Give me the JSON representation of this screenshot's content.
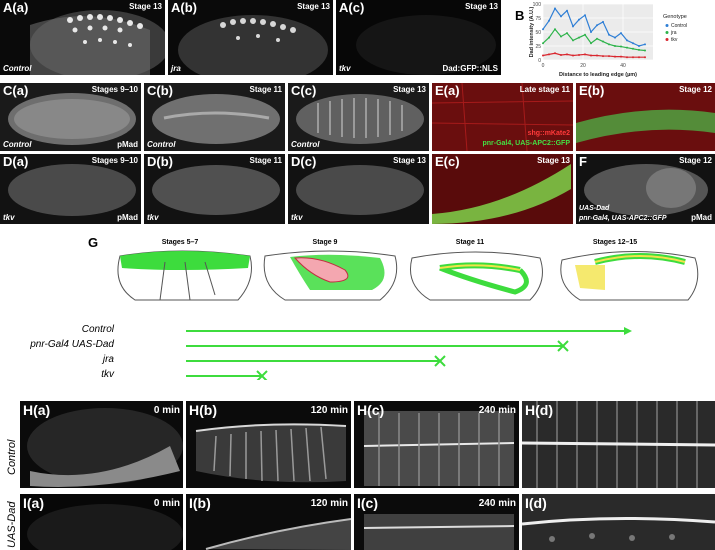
{
  "row_a": [
    {
      "label": "A(a)",
      "stage": "Stage 13",
      "bottom_left": "Control",
      "bottom_right": ""
    },
    {
      "label": "A(b)",
      "stage": "Stage 13",
      "bottom_left": "jra",
      "bottom_right": ""
    },
    {
      "label": "A(c)",
      "stage": "Stage 13",
      "bottom_left": "tkv",
      "bottom_right": "Dad:GFP::NLS"
    }
  ],
  "chart_panel": {
    "label": "B",
    "chart_data": {
      "type": "line",
      "xlabel": "Distance to leading edge (µm)",
      "ylabel": "Dad intensity (A.U.)",
      "xlim": [
        0,
        55
      ],
      "ylim": [
        0,
        100
      ],
      "xticks": [
        0,
        20,
        40
      ],
      "yticks": [
        0,
        25,
        50,
        75,
        100
      ],
      "legend_title": "Genotype",
      "legend_position": "right",
      "series": [
        {
          "name": "Control",
          "color": "#2f7fd6",
          "x": [
            0,
            3,
            6,
            9,
            12,
            15,
            18,
            21,
            24,
            27,
            30,
            33,
            36,
            39,
            42,
            45,
            48,
            51
          ],
          "y": [
            55,
            70,
            92,
            78,
            88,
            60,
            72,
            80,
            50,
            62,
            68,
            45,
            40,
            48,
            35,
            30,
            25,
            28
          ]
        },
        {
          "name": "jra",
          "color": "#2db34a",
          "x": [
            0,
            3,
            6,
            9,
            12,
            15,
            18,
            21,
            24,
            27,
            30,
            33,
            36,
            39,
            42,
            45,
            48,
            51
          ],
          "y": [
            30,
            40,
            55,
            42,
            48,
            35,
            40,
            45,
            30,
            38,
            33,
            28,
            25,
            24,
            22,
            20,
            18,
            17
          ]
        },
        {
          "name": "tkv",
          "color": "#d9262e",
          "x": [
            0,
            3,
            6,
            9,
            12,
            15,
            18,
            21,
            24,
            27,
            30,
            33,
            36,
            39,
            42,
            45,
            48,
            51
          ],
          "y": [
            8,
            10,
            12,
            9,
            10,
            8,
            9,
            10,
            8,
            8,
            7,
            7,
            6,
            6,
            5,
            5,
            5,
            5
          ]
        }
      ]
    }
  },
  "row_c": [
    {
      "label": "C(a)",
      "stage": "Stages 9–10",
      "bottom_left": "Control",
      "bottom_right": "pMad"
    },
    {
      "label": "C(b)",
      "stage": "Stage 11",
      "bottom_left": "Control",
      "bottom_right": ""
    },
    {
      "label": "C(c)",
      "stage": "Stage 13",
      "bottom_left": "Control",
      "bottom_right": ""
    },
    {
      "label": "E(a)",
      "stage": "Late stage 11",
      "bottom_left": "",
      "bottom_right": "",
      "legend1": "shg::mKate2",
      "legend2": "pnr-Gal4, UAS-APC2::GFP"
    },
    {
      "label": "E(b)",
      "stage": "Stage 12",
      "bottom_left": "",
      "bottom_right": ""
    }
  ],
  "row_d": [
    {
      "label": "D(a)",
      "stage": "Stages 9–10",
      "bottom_left": "tkv",
      "bottom_right": "pMad"
    },
    {
      "label": "D(b)",
      "stage": "Stage 11",
      "bottom_left": "tkv",
      "bottom_right": ""
    },
    {
      "label": "D(c)",
      "stage": "Stage 13",
      "bottom_left": "tkv",
      "bottom_right": ""
    },
    {
      "label": "E(c)",
      "stage": "Stage 13",
      "bottom_left": "",
      "bottom_right": ""
    },
    {
      "label": "F",
      "stage": "Stage 12",
      "bottom_left": "UAS-Dad",
      "bottom_left2": "pnr-Gal4, UAS-APC2::GFP",
      "bottom_right": "pMad"
    }
  ],
  "g_panel": {
    "label": "G",
    "stages": [
      "Stages 5–7",
      "Stage 9",
      "Stage 11",
      "Stages 12–15"
    ],
    "genotypes": [
      "Control",
      "pnr-Gal4 UAS-Dad",
      "jra",
      "tkv"
    ],
    "colors": {
      "green": "#3ddc3d",
      "pink": "#f4a7b0",
      "yellow": "#f2e34a"
    }
  },
  "row_h": {
    "side_label": "Control",
    "panels": [
      {
        "label": "H(a)",
        "time": "0 min"
      },
      {
        "label": "H(b)",
        "time": "120 min"
      },
      {
        "label": "H(c)",
        "time": "240 min"
      },
      {
        "label": "H(d)",
        "time": ""
      }
    ]
  },
  "row_i": {
    "side_label": "UAS-Dad",
    "panels": [
      {
        "label": "I(a)",
        "time": "0 min"
      },
      {
        "label": "I(b)",
        "time": "120 min"
      },
      {
        "label": "I(c)",
        "time": "240 min"
      },
      {
        "label": "I(d)",
        "time": ""
      }
    ]
  }
}
